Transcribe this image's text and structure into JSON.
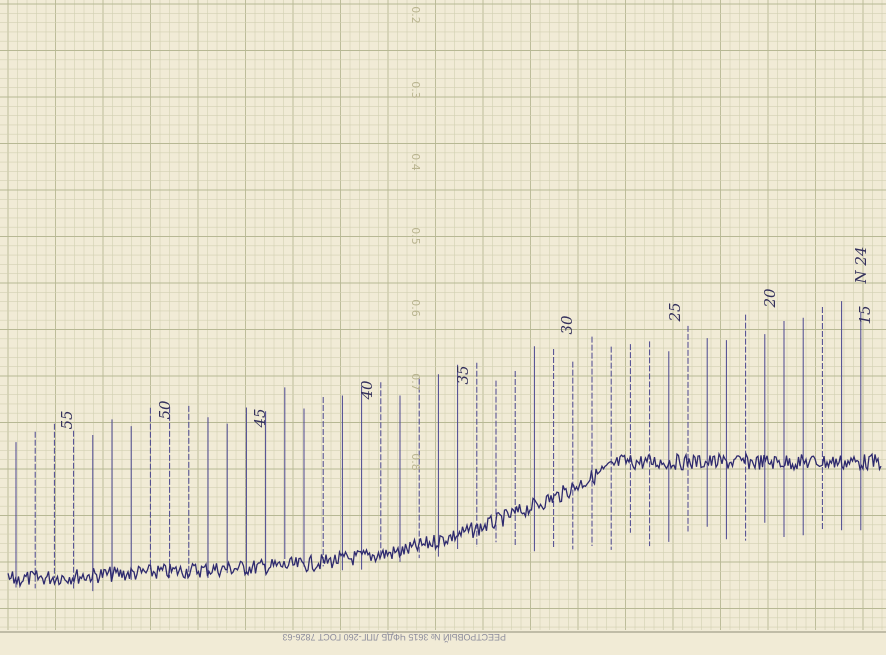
{
  "scale_labels": [
    "0.2",
    "0.3",
    "0.4",
    "0.5",
    "0.6",
    "0.7",
    "0.8"
  ],
  "handwritten_labels": [
    "55",
    "50",
    "45",
    "40",
    "35",
    "30",
    "25",
    "20",
    "15",
    "N 24"
  ],
  "footer_text": "РЕЕСТРОВЫЙ № 3615 ЧФДБ ЛПГ-260 ГОСТ 7826-63"
}
